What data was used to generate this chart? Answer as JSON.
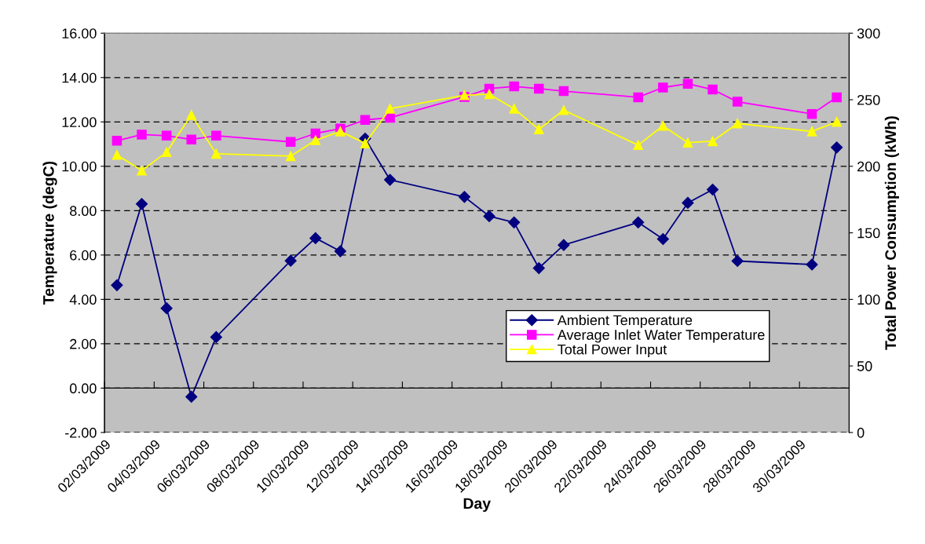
{
  "chart_data": {
    "type": "line",
    "xlabel": "Day",
    "ylabel": "Temperature (degC)",
    "y2label": "Total Power Consumption (kWh)",
    "x": [
      "2009-03-02T12:00",
      "2009-03-03T12:00",
      "2009-03-04T12:00",
      "2009-03-05T12:00",
      "2009-03-06T12:00",
      "2009-03-09T12:00",
      "2009-03-10T12:00",
      "2009-03-11T12:00",
      "2009-03-12T12:00",
      "2009-03-13T12:00",
      "2009-03-16T12:00",
      "2009-03-17T12:00",
      "2009-03-18T12:00",
      "2009-03-19T12:00",
      "2009-03-20T12:00",
      "2009-03-23T12:00",
      "2009-03-24T12:00",
      "2009-03-25T12:00",
      "2009-03-26T12:00",
      "2009-03-27T12:00",
      "2009-03-30T12:00",
      "2009-03-31T12:00"
    ],
    "series": [
      {
        "name": "Ambient Temperature",
        "color": "#000080",
        "marker": "diamond",
        "values": [
          4.64,
          8.3,
          3.6,
          -0.39,
          2.3,
          5.74,
          6.76,
          6.17,
          11.25,
          9.39,
          8.62,
          7.75,
          7.47,
          5.41,
          6.45,
          7.47,
          6.72,
          8.35,
          8.95,
          5.73,
          5.57,
          10.85
        ]
      },
      {
        "name": "Average Inlet Water Temperature",
        "color": "#ff00ff",
        "marker": "square",
        "values": [
          11.15,
          11.43,
          11.38,
          11.21,
          11.38,
          11.1,
          11.48,
          11.7,
          12.09,
          12.19,
          13.13,
          13.5,
          13.6,
          13.5,
          13.39,
          13.11,
          13.55,
          13.72,
          13.46,
          12.91,
          12.36,
          13.11
        ]
      },
      {
        "name": "Total Power Input",
        "color": "#ffff00",
        "marker": "triangle",
        "axis": "y2",
        "values": [
          208.6,
          196.8,
          210.6,
          238.5,
          209.4,
          207.6,
          219.6,
          226.2,
          217.2,
          243.3,
          253.4,
          254.2,
          243.3,
          227.8,
          242.2,
          215.9,
          230.4,
          217.8,
          218.8,
          232.2,
          226.2,
          233.4
        ]
      }
    ],
    "xlim": [
      "2009-03-02",
      "2009-04-01"
    ],
    "xticks": [
      {
        "value": "2009-03-02",
        "label": "02/03/2009"
      },
      {
        "value": "2009-03-04",
        "label": "04/03/2009"
      },
      {
        "value": "2009-03-06",
        "label": "06/03/2009"
      },
      {
        "value": "2009-03-08",
        "label": "08/03/2009"
      },
      {
        "value": "2009-03-10",
        "label": "10/03/2009"
      },
      {
        "value": "2009-03-12",
        "label": "12/03/2009"
      },
      {
        "value": "2009-03-14",
        "label": "14/03/2009"
      },
      {
        "value": "2009-03-16",
        "label": "16/03/2009"
      },
      {
        "value": "2009-03-18",
        "label": "18/03/2009"
      },
      {
        "value": "2009-03-20",
        "label": "20/03/2009"
      },
      {
        "value": "2009-03-22",
        "label": "22/03/2009"
      },
      {
        "value": "2009-03-24",
        "label": "24/03/2009"
      },
      {
        "value": "2009-03-26",
        "label": "26/03/2009"
      },
      {
        "value": "2009-03-28",
        "label": "28/03/2009"
      },
      {
        "value": "2009-03-30",
        "label": "30/03/2009"
      }
    ],
    "ylim": [
      -2,
      16
    ],
    "yticks": [
      {
        "value": -2,
        "label": "-2.00"
      },
      {
        "value": 0,
        "label": "0.00"
      },
      {
        "value": 2,
        "label": "2.00"
      },
      {
        "value": 4,
        "label": "4.00"
      },
      {
        "value": 6,
        "label": "6.00"
      },
      {
        "value": 8,
        "label": "8.00"
      },
      {
        "value": 10,
        "label": "10.00"
      },
      {
        "value": 12,
        "label": "12.00"
      },
      {
        "value": 14,
        "label": "14.00"
      },
      {
        "value": 16,
        "label": "16.00"
      }
    ],
    "y2lim": [
      0,
      300
    ],
    "y2ticks": [
      0,
      50,
      100,
      150,
      200,
      250,
      300
    ],
    "grid": "y",
    "legend": "bottom right",
    "line_style": "solid"
  }
}
